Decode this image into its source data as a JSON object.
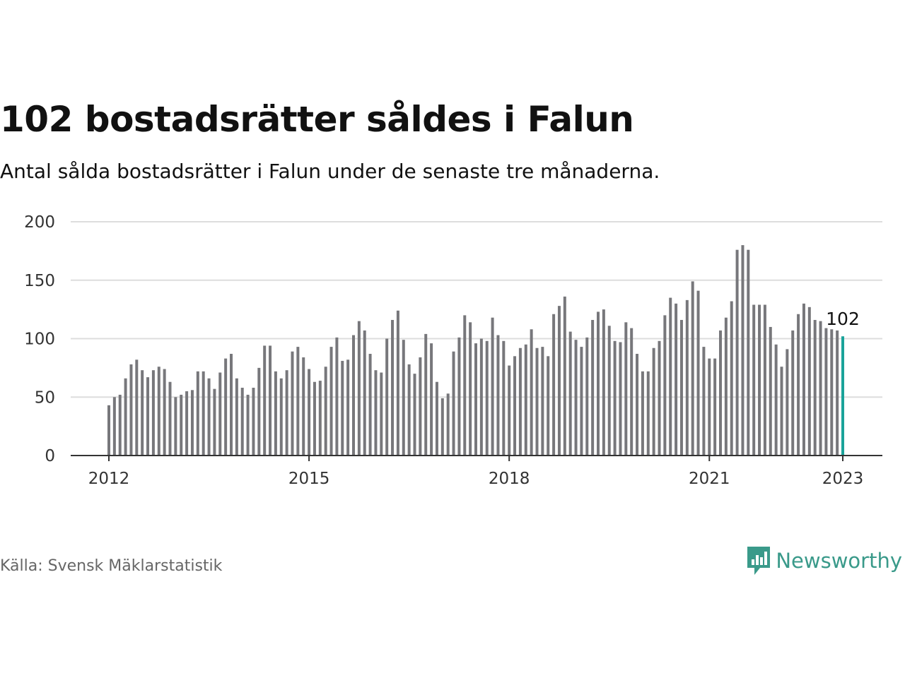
{
  "header": {
    "title": "102 bostadsrätter såldes i Falun",
    "subtitle": "Antal sålda bostadsrätter i Falun under de senaste tre månaderna."
  },
  "footer": {
    "source": "Källa: Svensk Mäklarstatistik",
    "logo_text": "Newsworthy"
  },
  "colors": {
    "bar": "#77777b",
    "highlight": "#1aa39a",
    "grid": "#dddddd",
    "axis": "#333333",
    "logo": "#3a9a8a"
  },
  "icons": {
    "logo": "newsworthy-logo-icon"
  },
  "chart_data": {
    "type": "bar",
    "title": "102 bostadsrätter såldes i Falun",
    "subtitle": "Antal sålda bostadsrätter i Falun under de senaste tre månaderna.",
    "xlabel": "",
    "ylabel": "",
    "ylim": [
      0,
      200
    ],
    "yticks": [
      0,
      50,
      100,
      150,
      200
    ],
    "xticks": [
      "2012",
      "2015",
      "2018",
      "2021",
      "2023"
    ],
    "x_start": "2012-01",
    "x_end": "2023-01",
    "grid": true,
    "highlight_label": "102",
    "series": [
      {
        "values": [
          43,
          50,
          52,
          66,
          78,
          82,
          73,
          67,
          73,
          76,
          74,
          63,
          50,
          52,
          55,
          56,
          72,
          72,
          66,
          57,
          71,
          83,
          87,
          66,
          58,
          52,
          58,
          75,
          94,
          94,
          72,
          66,
          73,
          89,
          93,
          84,
          74,
          63,
          64,
          76,
          93,
          101,
          81,
          82,
          103,
          115,
          107,
          87,
          73,
          71,
          100,
          116,
          124,
          99,
          78,
          70,
          84,
          104,
          96,
          63,
          49,
          53,
          89,
          101,
          120,
          114,
          96,
          100,
          98,
          118,
          103,
          98,
          77,
          85,
          92,
          95,
          108,
          92,
          93,
          85,
          121,
          128,
          136,
          106,
          99,
          93,
          101,
          116,
          123,
          125,
          111,
          98,
          97,
          114,
          109,
          87,
          72,
          72,
          92,
          98,
          120,
          135,
          130,
          116,
          133,
          149,
          141,
          93,
          83,
          83,
          107,
          118,
          132,
          176,
          180,
          176,
          129,
          129,
          129,
          110,
          95,
          76,
          91,
          107,
          121,
          130,
          127,
          116,
          115,
          109,
          108,
          107,
          102
        ]
      }
    ]
  }
}
